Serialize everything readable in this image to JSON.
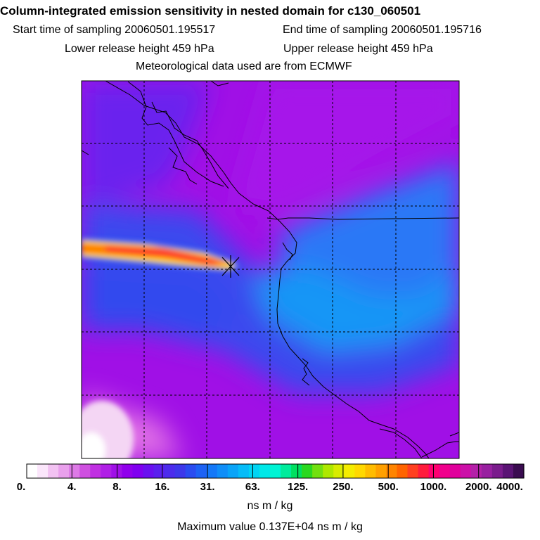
{
  "header": {
    "title": "Column-integrated emission sensitivity in nested domain for c130_060501",
    "start_label": "Start time of sampling 20060501.195517",
    "end_label": "End time of sampling 20060501.195716",
    "lower_label": "Lower release height  459 hPa",
    "upper_label": "Upper release height  459 hPa",
    "met_label": "Meteorological data used are from ECMWF"
  },
  "chart_data": {
    "type": "heatmap",
    "title": "Column-integrated emission sensitivity in nested domain for c130_060501",
    "colorbar": {
      "tick_labels": [
        "0.",
        "4.",
        "8.",
        "16.",
        "31.",
        "63.",
        "125.",
        "250.",
        "500.",
        "1000.",
        "2000.",
        "4000."
      ],
      "unit_label": "ns m / kg",
      "colors": [
        "#ffffff",
        "#fbe6fb",
        "#f2c2f2",
        "#e9a0ec",
        "#dd7ae6",
        "#cf50e0",
        "#c030e2",
        "#b020e6",
        "#a010e8",
        "#9000ec",
        "#8000f0",
        "#6a10f0",
        "#5a20ee",
        "#4c2cec",
        "#3d38ea",
        "#2a4cf0",
        "#1d62f4",
        "#1478f8",
        "#108ef8",
        "#0aa4f8",
        "#06bcf8",
        "#00d4f4",
        "#00e8e8",
        "#00f4d4",
        "#00ec9c",
        "#00e060",
        "#2ad820",
        "#72e010",
        "#aee800",
        "#d8ec00",
        "#f4ec00",
        "#ffd800",
        "#ffbc00",
        "#ffa000",
        "#ff8400",
        "#ff6400",
        "#ff4020",
        "#ff1c3c",
        "#ff0070",
        "#f0008c",
        "#e0009c",
        "#cc10a8",
        "#b420a8",
        "#9820a0",
        "#7a1c8c",
        "#5a1474",
        "#3a0c50"
      ]
    },
    "max_value_label": "Maximum value  0.137E+04 ns m / kg",
    "max_value": 1370,
    "release_point_marker": "x"
  }
}
